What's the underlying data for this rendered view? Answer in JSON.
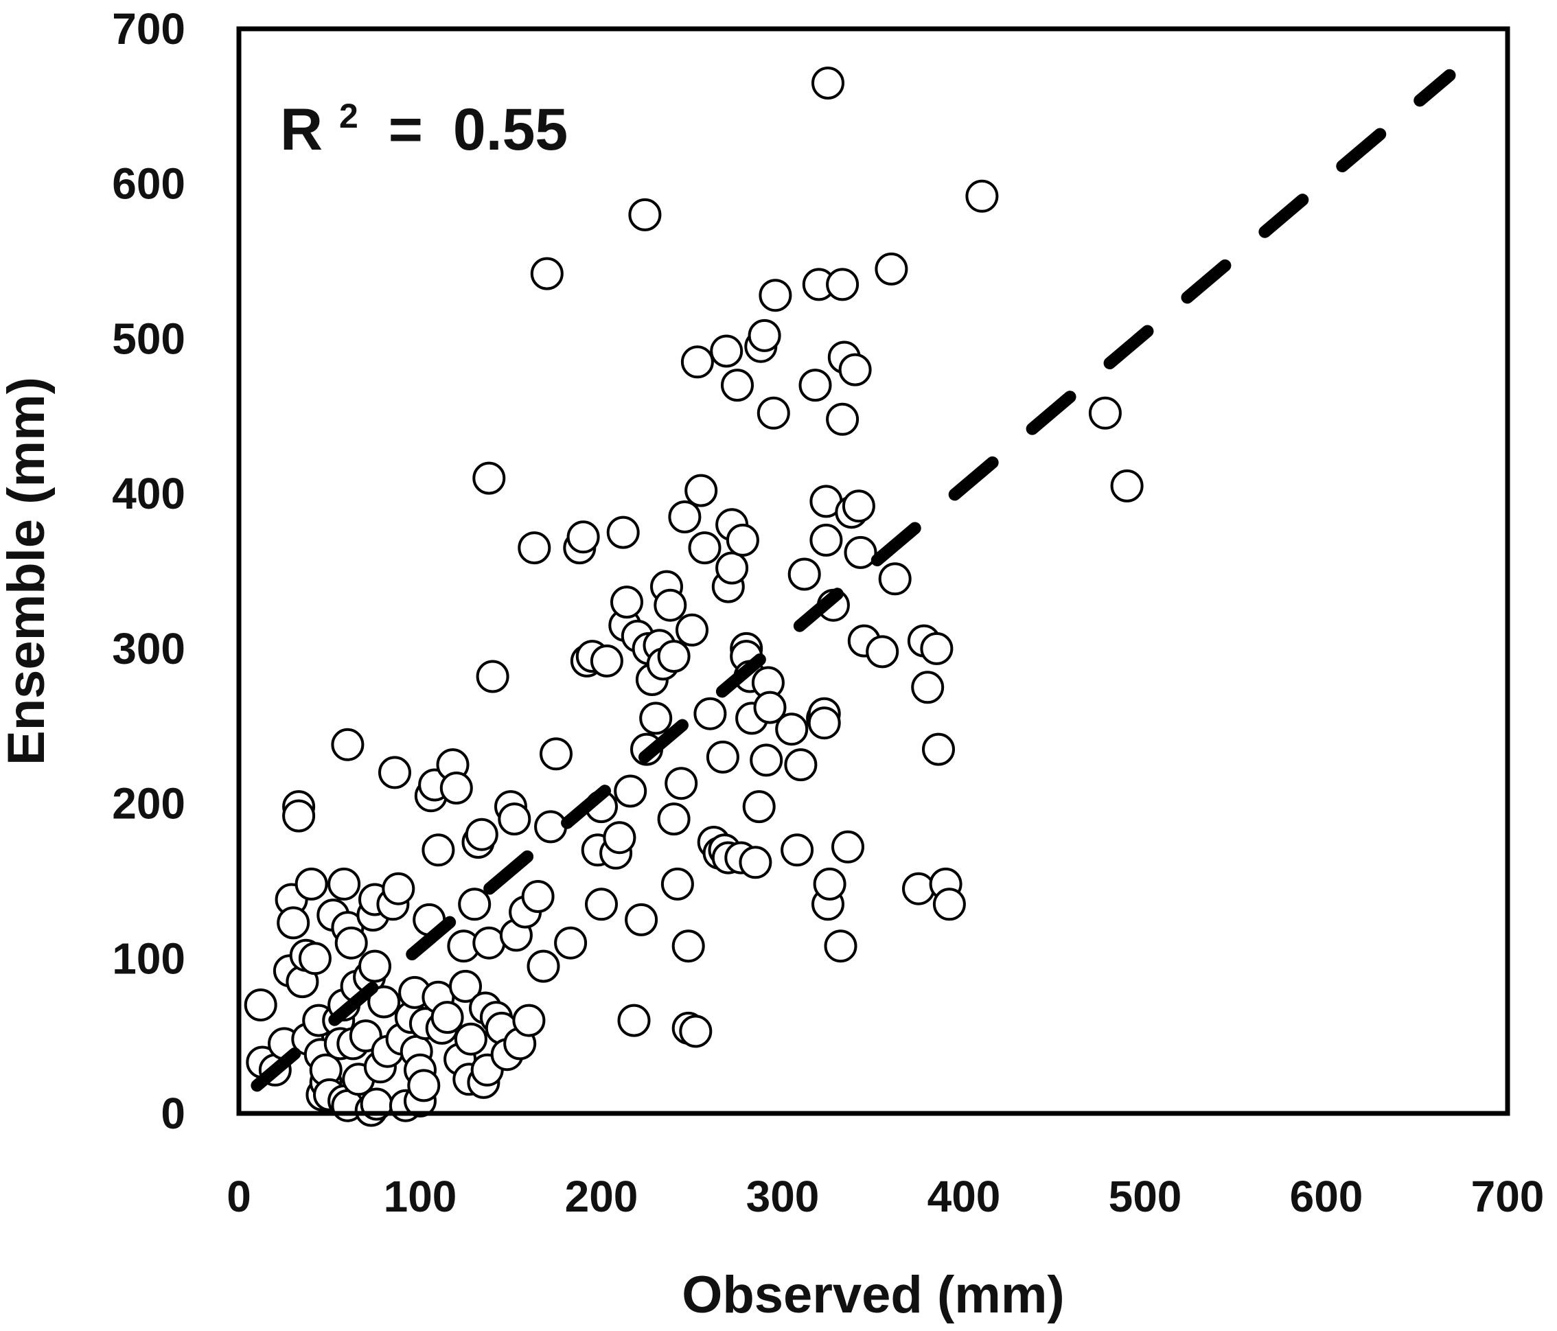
{
  "chart_data": {
    "type": "scatter",
    "title": "",
    "xlabel": "Observed (mm)",
    "ylabel": "Ensemble (mm)",
    "xlim": [
      0,
      700
    ],
    "ylim": [
      0,
      700
    ],
    "xticks": [
      "0",
      "100",
      "200",
      "300",
      "400",
      "500",
      "600",
      "700"
    ],
    "yticks": [
      "0",
      "100",
      "200",
      "300",
      "400",
      "500",
      "600",
      "700"
    ],
    "grid": false,
    "annotation": {
      "prefix": "R",
      "superscript": "2",
      "operator": "=",
      "value": "0.55"
    },
    "trendline": {
      "style": "dashed",
      "from": [
        10,
        18
      ],
      "to": [
        668,
        670
      ]
    },
    "marker": {
      "shape": "circle",
      "fill": "#ffffff",
      "stroke": "#000000"
    },
    "points": [
      [
        12,
        70
      ],
      [
        13,
        33
      ],
      [
        20,
        28
      ],
      [
        25,
        45
      ],
      [
        28,
        92
      ],
      [
        29,
        138
      ],
      [
        30,
        123
      ],
      [
        33,
        198
      ],
      [
        33,
        192
      ],
      [
        35,
        85
      ],
      [
        37,
        102
      ],
      [
        38,
        48
      ],
      [
        40,
        148
      ],
      [
        42,
        100
      ],
      [
        44,
        60
      ],
      [
        45,
        38
      ],
      [
        46,
        12
      ],
      [
        48,
        20
      ],
      [
        48,
        28
      ],
      [
        50,
        12
      ],
      [
        52,
        128
      ],
      [
        55,
        60
      ],
      [
        56,
        45
      ],
      [
        58,
        148
      ],
      [
        58,
        70
      ],
      [
        58,
        8
      ],
      [
        60,
        120
      ],
      [
        60,
        5
      ],
      [
        60,
        238
      ],
      [
        62,
        110
      ],
      [
        63,
        45
      ],
      [
        65,
        82
      ],
      [
        66,
        22
      ],
      [
        70,
        50
      ],
      [
        72,
        88
      ],
      [
        73,
        2
      ],
      [
        74,
        128
      ],
      [
        75,
        138
      ],
      [
        75,
        95
      ],
      [
        76,
        6
      ],
      [
        78,
        30
      ],
      [
        80,
        72
      ],
      [
        82,
        40
      ],
      [
        85,
        135
      ],
      [
        86,
        220
      ],
      [
        88,
        145
      ],
      [
        90,
        48
      ],
      [
        92,
        5
      ],
      [
        95,
        62
      ],
      [
        97,
        78
      ],
      [
        98,
        40
      ],
      [
        100,
        28
      ],
      [
        100,
        8
      ],
      [
        102,
        18
      ],
      [
        103,
        58
      ],
      [
        105,
        125
      ],
      [
        106,
        205
      ],
      [
        108,
        212
      ],
      [
        110,
        75
      ],
      [
        110,
        170
      ],
      [
        112,
        55
      ],
      [
        115,
        62
      ],
      [
        118,
        225
      ],
      [
        120,
        210
      ],
      [
        122,
        35
      ],
      [
        124,
        108
      ],
      [
        125,
        82
      ],
      [
        127,
        22
      ],
      [
        128,
        48
      ],
      [
        130,
        135
      ],
      [
        132,
        175
      ],
      [
        134,
        180
      ],
      [
        135,
        20
      ],
      [
        136,
        68
      ],
      [
        137,
        28
      ],
      [
        138,
        110
      ],
      [
        138,
        410
      ],
      [
        140,
        282
      ],
      [
        142,
        62
      ],
      [
        145,
        55
      ],
      [
        148,
        38
      ],
      [
        150,
        198
      ],
      [
        152,
        190
      ],
      [
        153,
        115
      ],
      [
        155,
        45
      ],
      [
        158,
        130
      ],
      [
        160,
        60
      ],
      [
        163,
        365
      ],
      [
        165,
        140
      ],
      [
        168,
        95
      ],
      [
        170,
        542
      ],
      [
        172,
        185
      ],
      [
        175,
        232
      ],
      [
        183,
        110
      ],
      [
        188,
        365
      ],
      [
        190,
        372
      ],
      [
        192,
        292
      ],
      [
        195,
        295
      ],
      [
        198,
        170
      ],
      [
        200,
        198
      ],
      [
        200,
        135
      ],
      [
        203,
        292
      ],
      [
        208,
        168
      ],
      [
        210,
        178
      ],
      [
        212,
        375
      ],
      [
        213,
        315
      ],
      [
        214,
        330
      ],
      [
        216,
        208
      ],
      [
        218,
        60
      ],
      [
        220,
        308
      ],
      [
        222,
        125
      ],
      [
        224,
        580
      ],
      [
        225,
        235
      ],
      [
        226,
        300
      ],
      [
        228,
        280
      ],
      [
        230,
        255
      ],
      [
        232,
        302
      ],
      [
        234,
        290
      ],
      [
        236,
        340
      ],
      [
        238,
        328
      ],
      [
        240,
        295
      ],
      [
        240,
        190
      ],
      [
        242,
        148
      ],
      [
        244,
        213
      ],
      [
        246,
        385
      ],
      [
        248,
        108
      ],
      [
        248,
        55
      ],
      [
        250,
        312
      ],
      [
        252,
        53
      ],
      [
        253,
        485
      ],
      [
        255,
        402
      ],
      [
        257,
        365
      ],
      [
        260,
        258
      ],
      [
        262,
        175
      ],
      [
        265,
        168
      ],
      [
        267,
        230
      ],
      [
        268,
        170
      ],
      [
        269,
        492
      ],
      [
        270,
        165
      ],
      [
        270,
        340
      ],
      [
        272,
        352
      ],
      [
        272,
        380
      ],
      [
        275,
        470
      ],
      [
        277,
        165
      ],
      [
        278,
        370
      ],
      [
        280,
        300
      ],
      [
        280,
        295
      ],
      [
        282,
        282
      ],
      [
        283,
        255
      ],
      [
        285,
        162
      ],
      [
        287,
        198
      ],
      [
        288,
        495
      ],
      [
        290,
        502
      ],
      [
        291,
        228
      ],
      [
        292,
        278
      ],
      [
        293,
        262
      ],
      [
        295,
        452
      ],
      [
        296,
        528
      ],
      [
        305,
        248
      ],
      [
        308,
        170
      ],
      [
        310,
        225
      ],
      [
        312,
        348
      ],
      [
        318,
        470
      ],
      [
        320,
        535
      ],
      [
        322,
        255
      ],
      [
        323,
        258
      ],
      [
        323,
        252
      ],
      [
        324,
        395
      ],
      [
        324,
        370
      ],
      [
        325,
        665
      ],
      [
        325,
        135
      ],
      [
        326,
        148
      ],
      [
        328,
        328
      ],
      [
        332,
        108
      ],
      [
        333,
        535
      ],
      [
        333,
        448
      ],
      [
        334,
        488
      ],
      [
        336,
        172
      ],
      [
        338,
        388
      ],
      [
        340,
        480
      ],
      [
        342,
        392
      ],
      [
        343,
        362
      ],
      [
        345,
        305
      ],
      [
        355,
        298
      ],
      [
        360,
        545
      ],
      [
        362,
        345
      ],
      [
        375,
        145
      ],
      [
        378,
        305
      ],
      [
        380,
        275
      ],
      [
        385,
        300
      ],
      [
        386,
        235
      ],
      [
        390,
        148
      ],
      [
        392,
        135
      ],
      [
        410,
        592
      ],
      [
        478,
        452
      ],
      [
        490,
        405
      ]
    ]
  }
}
